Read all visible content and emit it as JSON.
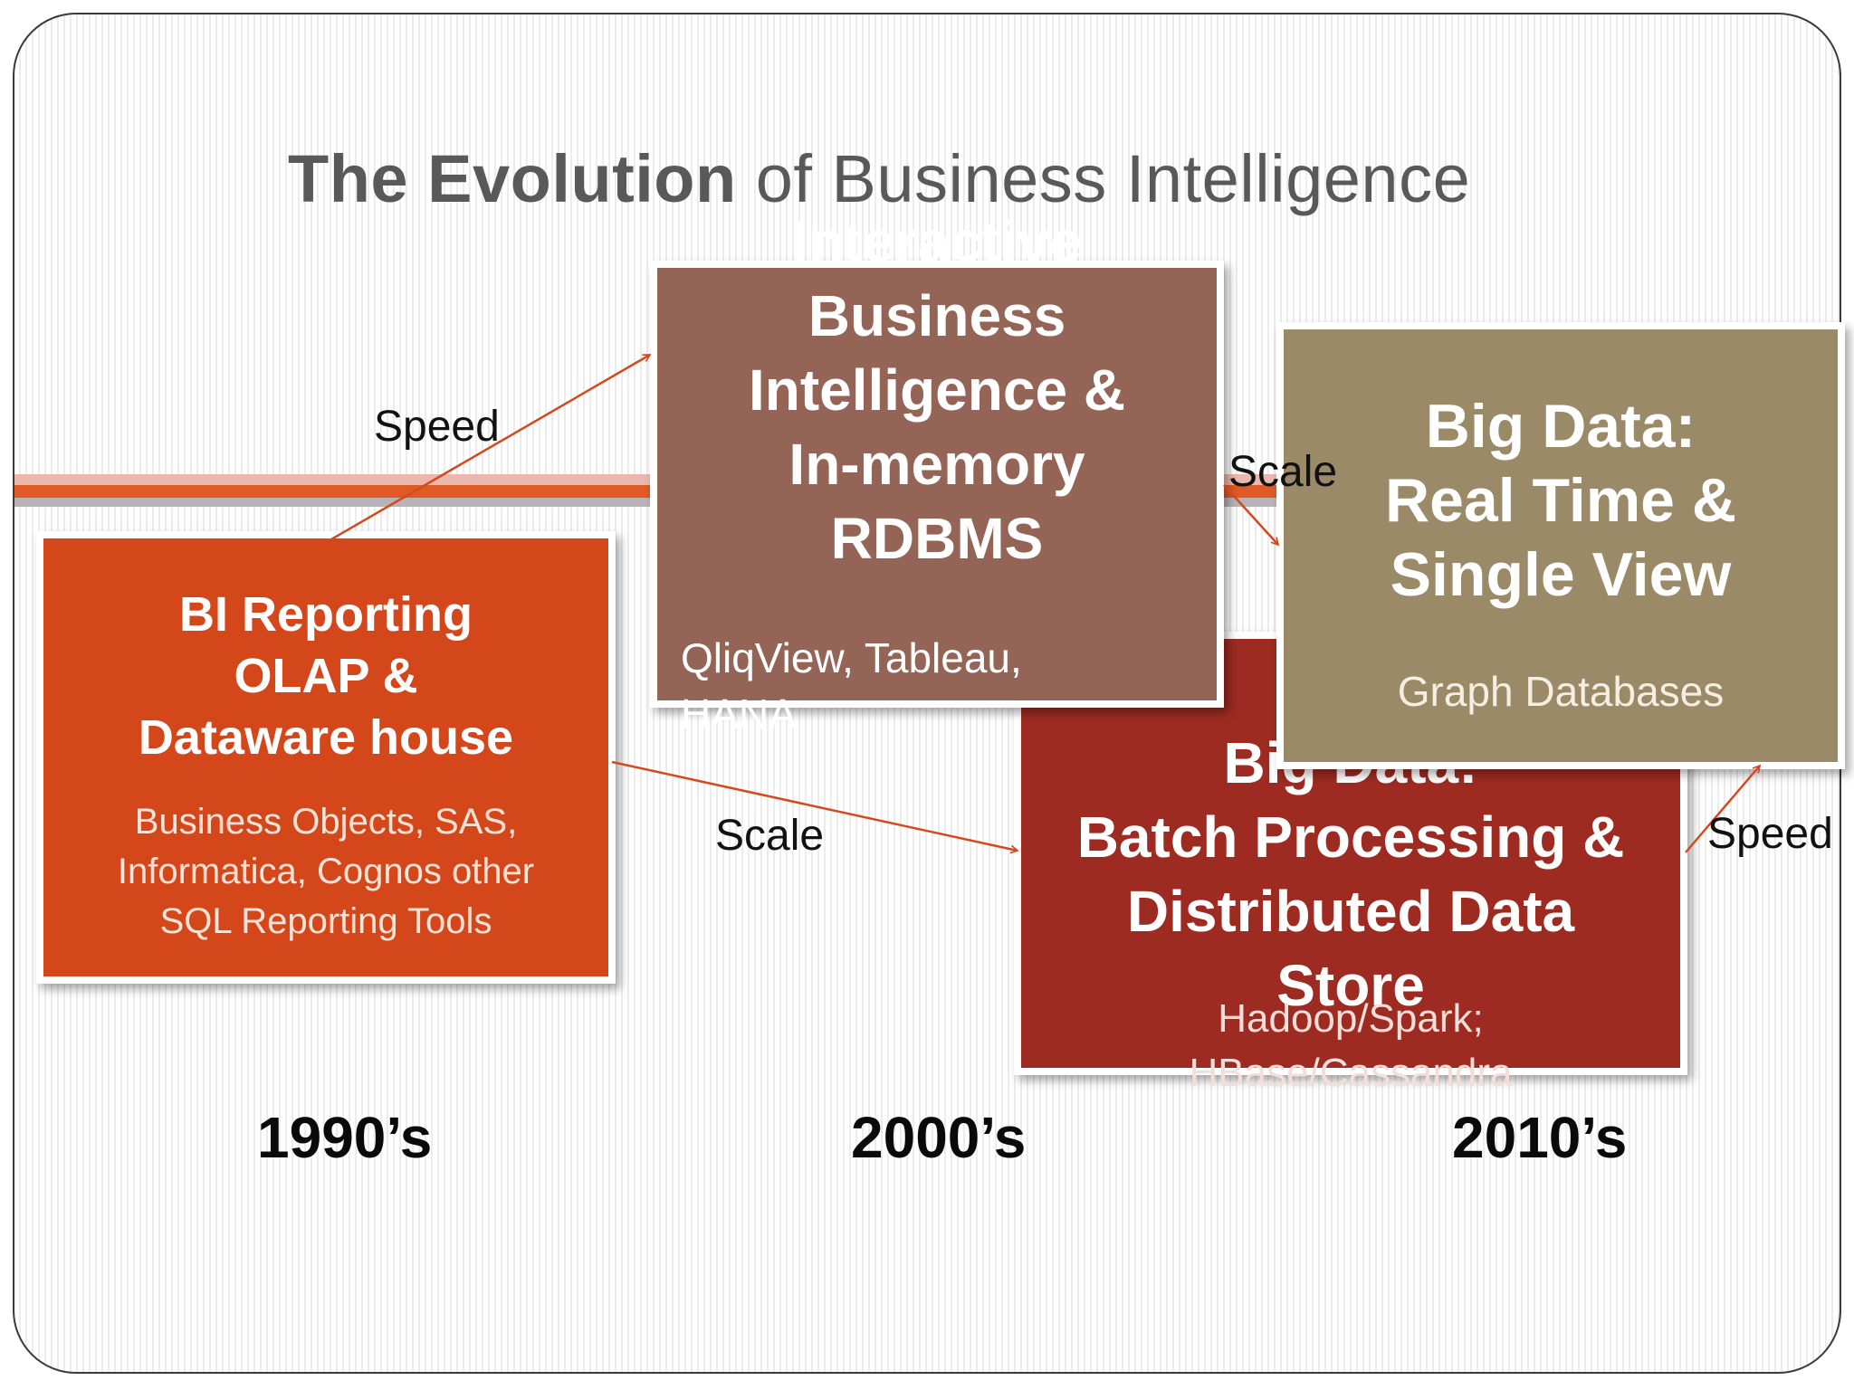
{
  "title": {
    "bold": "The Evolution",
    "rest": " of Business Intelligence"
  },
  "boxes": {
    "bi_reporting": {
      "heading": [
        "BI Reporting",
        "OLAP &",
        "Dataware house"
      ],
      "tools": [
        "Business Objects, SAS,",
        "Informatica, Cognos other",
        "SQL Reporting Tools"
      ],
      "color": "#d4471b"
    },
    "interactive_bi": {
      "heading": [
        "Interactive",
        "Business",
        "Intelligence &",
        "In-memory",
        "RDBMS"
      ],
      "tools": [
        "QliqView, Tableau,",
        "HANA"
      ],
      "color": "#946457"
    },
    "big_data_batch": {
      "heading": [
        "Big Data:",
        "Batch Processing &",
        "Distributed Data",
        "Store"
      ],
      "tools": [
        "Hadoop/Spark;",
        "HBase/Cassandra"
      ],
      "color": "#9d2b22"
    },
    "big_data_realtime": {
      "heading": [
        "Big Data:",
        "Real Time &",
        "Single View"
      ],
      "tools": [
        "Graph Databases"
      ],
      "color": "#9b8a68"
    }
  },
  "arrow_labels": {
    "speed_1": "Speed",
    "scale_1": "Scale",
    "scale_2": "Scale",
    "speed_2": "Speed"
  },
  "eras": [
    "1990’s",
    "2000’s",
    "2010’s"
  ],
  "colors": {
    "arrow": "#d24a1e",
    "band": "#e05a26",
    "title": "#595959"
  }
}
